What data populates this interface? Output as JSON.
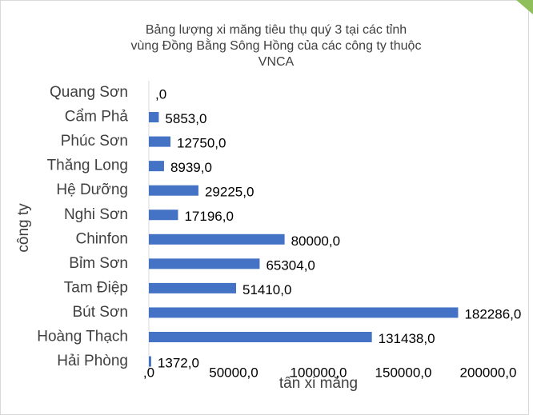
{
  "chart_data": {
    "type": "bar",
    "orientation": "horizontal",
    "title": [
      "Bảng lượng xi măng tiêu thụ quý 3 tại các tỉnh",
      "vùng Đồng Bằng Sông Hồng của các công ty thuộc",
      "VNCA"
    ],
    "categories": [
      "Quang Sơn",
      "Cẩm Phả",
      "Phúc Sơn",
      "Thăng Long",
      "Hệ Dưỡng",
      "Nghi Sơn",
      "Chinfon",
      "Bỉm Sơn",
      "Tam Điệp",
      "Bút Sơn",
      "Hoàng Thạch",
      "Hải Phòng"
    ],
    "values": [
      0,
      5853,
      12750,
      8939,
      29225,
      17196,
      80000,
      65304,
      51410,
      182286,
      131438,
      1372
    ],
    "value_labels": [
      ",0",
      "5853,0",
      "12750,0",
      "8939,0",
      "29225,0",
      "17196,0",
      "80000,0",
      "65304,0",
      "51410,0",
      "182286,0",
      "131438,0",
      "1372,0"
    ],
    "color": "#4472c4",
    "xlim": [
      0,
      200000
    ],
    "xticks": [
      {
        "value": 0,
        "label": ",0"
      },
      {
        "value": 50000,
        "label": "50000,0"
      },
      {
        "value": 100000,
        "label": "100000,0"
      },
      {
        "value": 150000,
        "label": "150000,0"
      },
      {
        "value": 200000,
        "label": "200000,0"
      }
    ],
    "xlabel": "tấn xi măng",
    "ylabel": "công ty",
    "grid": false
  }
}
